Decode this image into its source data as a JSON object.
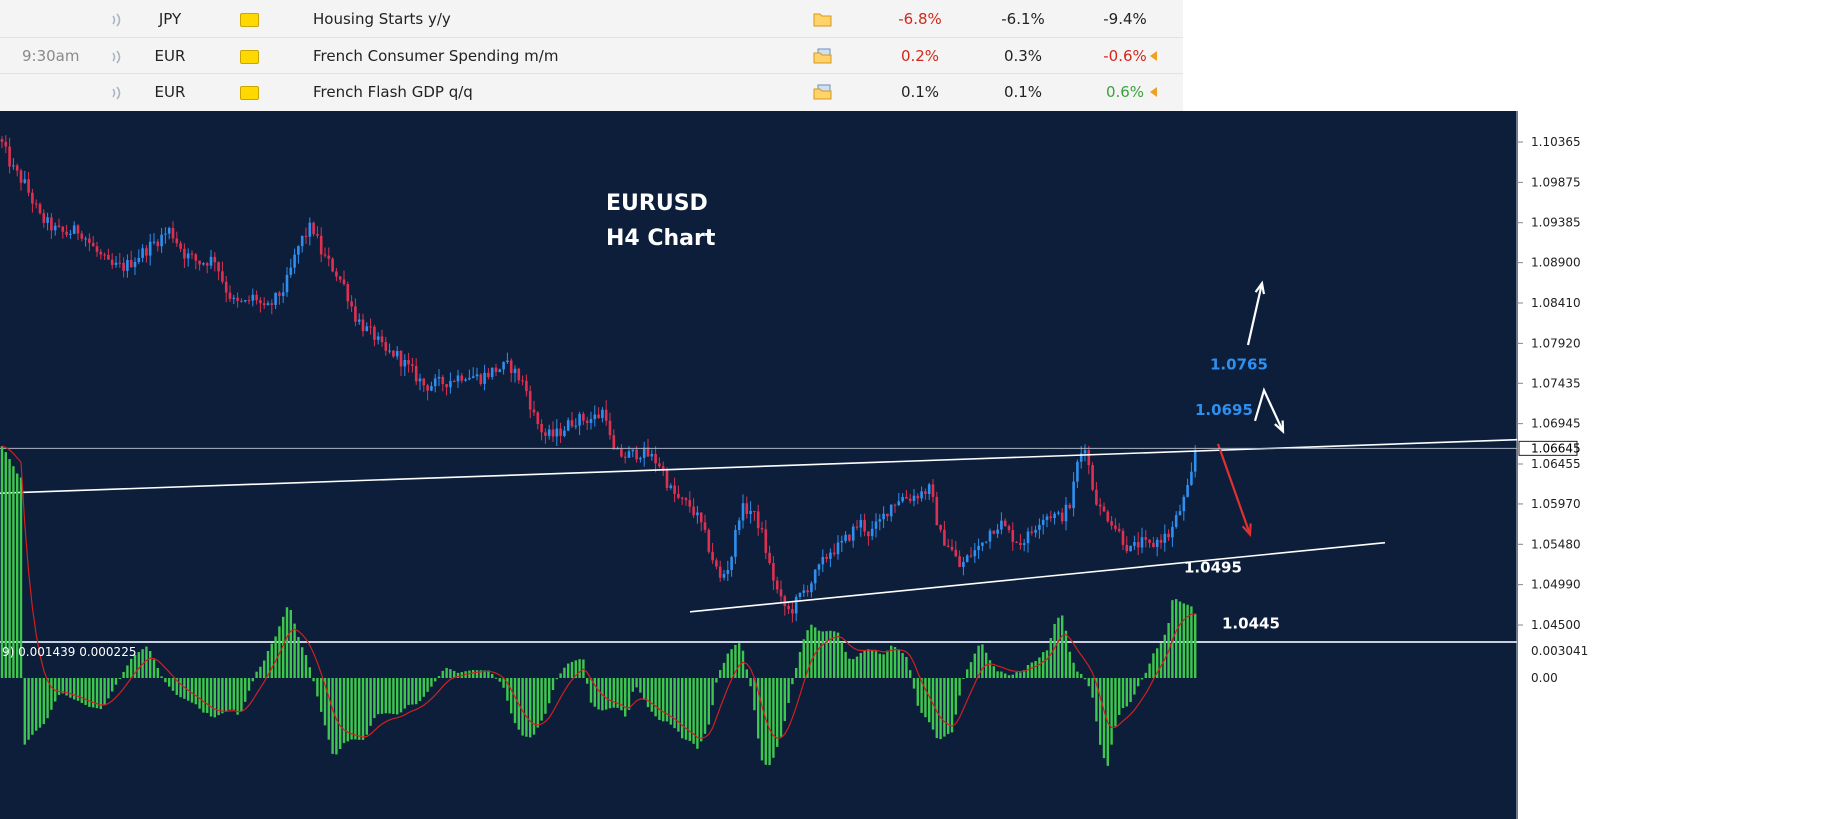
{
  "calendar": {
    "rows": [
      {
        "time": "",
        "currency": "JPY",
        "event": "Housing Starts y/y",
        "actual": "-6.8%",
        "actual_tone": "neg",
        "forecast": "-6.1%",
        "previous": "-9.4%",
        "previous_tone": "neu",
        "revised": false,
        "doc_icon": "folder-icon"
      },
      {
        "time": "9:30am",
        "currency": "EUR",
        "event": "French Consumer Spending m/m",
        "actual": "0.2%",
        "actual_tone": "neg",
        "forecast": "0.3%",
        "previous": "-0.6%",
        "previous_tone": "neg",
        "revised": true,
        "doc_icon": "document-stack-icon"
      },
      {
        "time": "",
        "currency": "EUR",
        "event": "French Flash GDP q/q",
        "actual": "0.1%",
        "actual_tone": "neu",
        "forecast": "0.1%",
        "previous": "0.6%",
        "previous_tone": "pos",
        "revised": true,
        "doc_icon": "document-stack-icon"
      }
    ],
    "icons": {
      "speaker": "speaker-icon",
      "flag": "currency-flag-icon"
    }
  },
  "chart": {
    "title_line1": "EURUSD",
    "title_line2": "H4 Chart",
    "current_price": "1.06645",
    "y_ticks": [
      "1.10365",
      "1.09875",
      "1.09385",
      "1.08900",
      "1.08410",
      "1.07920",
      "1.07435",
      "1.06945",
      "1.06455",
      "1.05970",
      "1.05480",
      "1.04990",
      "1.04500"
    ],
    "annotations": [
      {
        "text": "1.0765",
        "color": "#2e8ff0"
      },
      {
        "text": "1.0695",
        "color": "#2e8ff0"
      },
      {
        "text": "1.0495",
        "color": "#ffffff"
      },
      {
        "text": "1.0445",
        "color": "#ffffff"
      }
    ],
    "indicator": {
      "label": "9) 0.001439 0.000225",
      "y_ticks": [
        "0.003041",
        "0.00"
      ]
    },
    "colors": {
      "background": "#0c1e3a",
      "bull": "#2e8ff0",
      "bear": "#e03050",
      "macd": "#3ec74e",
      "signal": "#d02020"
    }
  },
  "chart_data": {
    "type": "candlestick",
    "title": "EURUSD H4 Chart",
    "ylim": [
      1.0445,
      1.1085
    ],
    "y_ticks": [
      1.10365,
      1.09875,
      1.09385,
      1.089,
      1.0841,
      1.0792,
      1.07435,
      1.06945,
      1.06455,
      1.0597,
      1.0548,
      1.0499,
      1.045
    ],
    "current_price": 1.06645,
    "price_path": [
      [
        0,
        1.104
      ],
      [
        12,
        1.1005
      ],
      [
        25,
        1.0985
      ],
      [
        40,
        1.0945
      ],
      [
        55,
        1.093
      ],
      [
        65,
        1.0925
      ],
      [
        80,
        1.093
      ],
      [
        95,
        1.0905
      ],
      [
        110,
        1.0885
      ],
      [
        125,
        1.0885
      ],
      [
        140,
        1.09
      ],
      [
        155,
        1.0915
      ],
      [
        170,
        1.093
      ],
      [
        185,
        1.09
      ],
      [
        200,
        1.089
      ],
      [
        215,
        1.0895
      ],
      [
        225,
        1.086
      ],
      [
        235,
        1.084
      ],
      [
        245,
        1.084
      ],
      [
        255,
        1.085
      ],
      [
        265,
        1.083
      ],
      [
        275,
        1.0845
      ],
      [
        285,
        1.086
      ],
      [
        300,
        1.0915
      ],
      [
        312,
        1.0935
      ],
      [
        322,
        1.09
      ],
      [
        335,
        1.088
      ],
      [
        345,
        1.086
      ],
      [
        355,
        1.0825
      ],
      [
        365,
        1.081
      ],
      [
        375,
        1.08
      ],
      [
        385,
        1.078
      ],
      [
        395,
        1.078
      ],
      [
        410,
        1.076
      ],
      [
        425,
        1.074
      ],
      [
        445,
        1.0745
      ],
      [
        465,
        1.0755
      ],
      [
        480,
        1.075
      ],
      [
        495,
        1.076
      ],
      [
        510,
        1.0765
      ],
      [
        525,
        1.074
      ],
      [
        535,
        1.07
      ],
      [
        545,
        1.068
      ],
      [
        555,
        1.068
      ],
      [
        565,
        1.069
      ],
      [
        575,
        1.07
      ],
      [
        590,
        1.07
      ],
      [
        600,
        1.0705
      ],
      [
        605,
        1.0715
      ],
      [
        612,
        1.066
      ],
      [
        625,
        1.0655
      ],
      [
        640,
        1.066
      ],
      [
        650,
        1.0655
      ],
      [
        660,
        1.0645
      ],
      [
        670,
        1.0615
      ],
      [
        680,
        1.06
      ],
      [
        690,
        1.0595
      ],
      [
        700,
        1.0575
      ],
      [
        710,
        1.054
      ],
      [
        720,
        1.0505
      ],
      [
        730,
        1.0525
      ],
      [
        740,
        1.059
      ],
      [
        750,
        1.059
      ],
      [
        760,
        1.057
      ],
      [
        770,
        1.052
      ],
      [
        780,
        1.048
      ],
      [
        790,
        1.0465
      ],
      [
        800,
        1.0485
      ],
      [
        810,
        1.05
      ],
      [
        820,
        1.052
      ],
      [
        830,
        1.054
      ],
      [
        840,
        1.0545
      ],
      [
        850,
        1.056
      ],
      [
        860,
        1.0575
      ],
      [
        870,
        1.056
      ],
      [
        880,
        1.0575
      ],
      [
        890,
        1.0595
      ],
      [
        900,
        1.0605
      ],
      [
        910,
        1.0605
      ],
      [
        920,
        1.061
      ],
      [
        930,
        1.0615
      ],
      [
        940,
        1.056
      ],
      [
        950,
        1.0545
      ],
      [
        960,
        1.052
      ],
      [
        970,
        1.0535
      ],
      [
        980,
        1.0545
      ],
      [
        990,
        1.0565
      ],
      [
        1000,
        1.0575
      ],
      [
        1010,
        1.056
      ],
      [
        1020,
        1.055
      ],
      [
        1030,
        1.056
      ],
      [
        1040,
        1.058
      ],
      [
        1050,
        1.0585
      ],
      [
        1060,
        1.058
      ],
      [
        1070,
        1.0595
      ],
      [
        1078,
        1.065
      ],
      [
        1085,
        1.067
      ],
      [
        1092,
        1.062
      ],
      [
        1100,
        1.059
      ],
      [
        1110,
        1.058
      ],
      [
        1120,
        1.056
      ],
      [
        1130,
        1.054
      ],
      [
        1140,
        1.055
      ],
      [
        1150,
        1.0545
      ],
      [
        1160,
        1.0555
      ],
      [
        1170,
        1.056
      ],
      [
        1180,
        1.059
      ],
      [
        1190,
        1.062
      ],
      [
        1195,
        1.066
      ]
    ],
    "trendlines": [
      {
        "x1": 0,
        "p1": 1.061,
        "x2": 1517,
        "p2": 1.0675,
        "color": "#ffffff"
      },
      {
        "x1": 690,
        "p1": 1.0466,
        "x2": 1385,
        "p2": 1.055,
        "color": "#ffffff"
      }
    ],
    "arrows": [
      {
        "points": [
          [
            1248,
            1.079
          ],
          [
            1262,
            1.0865
          ]
        ],
        "color": "#ffffff"
      },
      {
        "points": [
          [
            1255,
            1.0698
          ],
          [
            1264,
            1.0735
          ],
          [
            1283,
            1.0685
          ]
        ],
        "color": "#ffffff"
      },
      {
        "points": [
          [
            1218,
            1.067
          ],
          [
            1250,
            1.056
          ]
        ],
        "color": "#e03030"
      }
    ],
    "annotation_levels": [
      {
        "text": "1.0765",
        "at": [
          1210,
          1.076
        ]
      },
      {
        "text": "1.0695",
        "at": [
          1195,
          1.0705
        ]
      },
      {
        "text": "1.0495",
        "at": [
          1184,
          1.0514
        ]
      },
      {
        "text": "1.0445",
        "at": [
          1222,
          1.0446
        ]
      }
    ],
    "indicator_ylim": [
      -0.002,
      0.003041
    ],
    "indicator_ticks": [
      0.003041,
      0.0
    ]
  }
}
